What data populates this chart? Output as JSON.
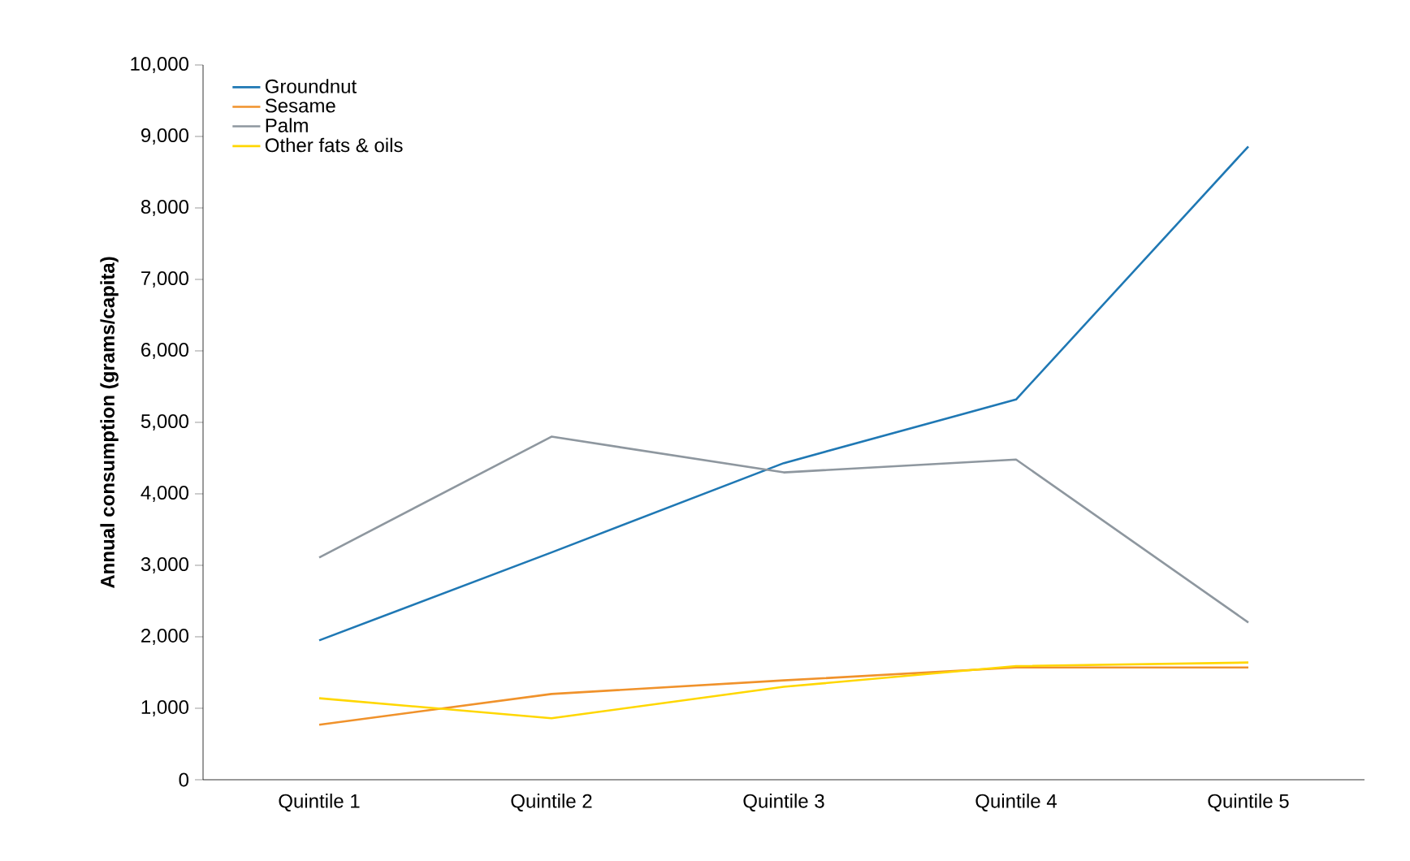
{
  "chart_data": {
    "type": "line",
    "ylabel": "Annual consumption (grams/capita)",
    "categories": [
      "Quintile 1",
      "Quintile 2",
      "Quintile 3",
      "Quintile 4",
      "Quintile 5"
    ],
    "series": [
      {
        "name": "Groundnut",
        "color": "#1f78b4",
        "values": [
          1950,
          3180,
          4430,
          5320,
          8860
        ]
      },
      {
        "name": "Sesame",
        "color": "#f0922b",
        "values": [
          770,
          1200,
          1390,
          1570,
          1570
        ]
      },
      {
        "name": "Palm",
        "color": "#8e979f",
        "values": [
          3110,
          4800,
          4300,
          4480,
          2200
        ]
      },
      {
        "name": "Other fats & oils",
        "color": "#ffd700",
        "values": [
          1140,
          860,
          1300,
          1590,
          1640
        ]
      }
    ],
    "ylim": [
      0,
      10000
    ],
    "yticks": [
      0,
      {
        "value": 1000,
        "label": "1,000"
      },
      {
        "value": 2000,
        "label": "2,000"
      },
      {
        "value": 3000,
        "label": "3,000"
      },
      {
        "value": 4000,
        "label": "4,000"
      },
      {
        "value": 5000,
        "label": "5,000"
      },
      {
        "value": 6000,
        "label": "6,000"
      },
      {
        "value": 7000,
        "label": "7,000"
      },
      {
        "value": 8000,
        "label": "8,000"
      },
      {
        "value": 9000,
        "label": "9,000"
      },
      {
        "value": 10000,
        "label": "10,000"
      }
    ],
    "grid": false,
    "legend": "top left",
    "marker": "none",
    "line_style": "solid"
  }
}
